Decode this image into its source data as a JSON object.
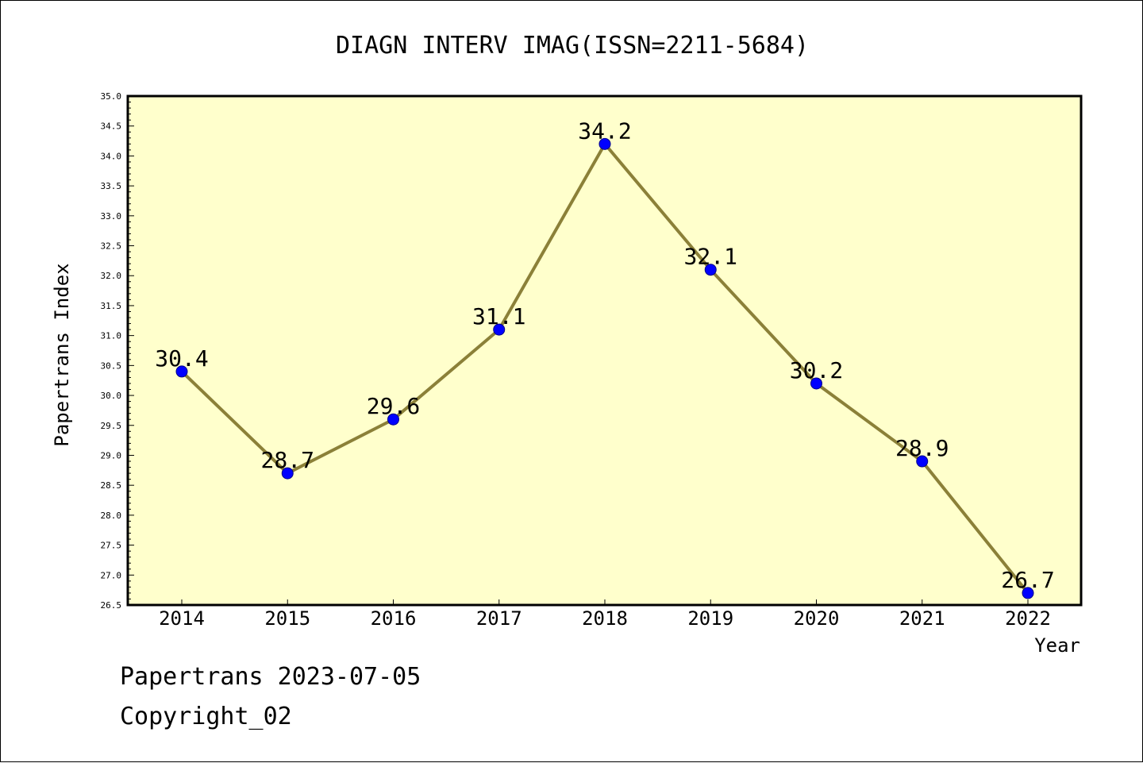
{
  "chart_data": {
    "type": "line",
    "title": "DIAGN INTERV IMAG(ISSN=2211-5684)",
    "xlabel": "Year",
    "ylabel": "Papertrans Index",
    "categories": [
      "2014",
      "2015",
      "2016",
      "2017",
      "2018",
      "2019",
      "2020",
      "2021",
      "2022"
    ],
    "series": [
      {
        "values": [
          30.4,
          28.7,
          29.6,
          31.1,
          34.2,
          32.1,
          30.2,
          28.9,
          26.7
        ],
        "point_labels": [
          "30.4",
          "28.7",
          "29.6",
          "31.1",
          "34.2",
          "32.1",
          "30.2",
          "28.9",
          "26.7"
        ]
      }
    ],
    "ylim": [
      26.5,
      35.0
    ],
    "y_ticks": [
      "26.5",
      "27.0",
      "27.5",
      "28.0",
      "28.5",
      "29.0",
      "29.5",
      "30.0",
      "30.5",
      "31.0",
      "31.5",
      "32.0",
      "32.5",
      "33.0",
      "33.5",
      "34.0",
      "34.5",
      "35.0"
    ],
    "grid": false,
    "legend": "none",
    "colors": {
      "plot_background": "#ffffcc",
      "line": "#8b8038",
      "marker": "#0000ff"
    }
  },
  "footer": {
    "line1": "Papertrans 2023-07-05",
    "line2": "Copyright_02"
  }
}
